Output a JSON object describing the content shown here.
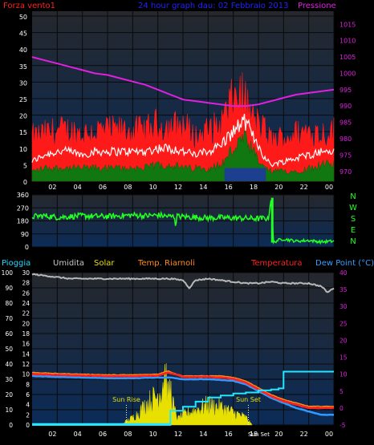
{
  "colors": {
    "plot_bg_top": "#23272c",
    "plot_bg_bottom": "#0b2a55",
    "grid": "#0a0a0a",
    "wind_gust": "#ff1a1a",
    "wind_avg": "#ffffff",
    "wind_low": "#117711",
    "wind_blue": "#1d3f8f",
    "pressure": "#e020e0",
    "wind_dir": "#22ff22",
    "humidity": "#b8b8b8",
    "solar": "#e8e000",
    "temperature": "#ff2020",
    "temp_inside": "#ff8c1a",
    "dewpoint": "#3399ff",
    "rain": "#22e8ff",
    "title": "#2222ff",
    "tick_left": "#ffffff",
    "tick_right": "#dd22dd",
    "cyan_label": "#33b8ff"
  },
  "chart_data": [
    {
      "type": "line",
      "title": "24 hour graph dau: 02 Febbraio 2013",
      "left_label": "Forza vento1",
      "right_label": "Pressione",
      "x_ticks": [
        "02",
        "04",
        "06",
        "08",
        "10",
        "12",
        "14",
        "16",
        "18",
        "20",
        "22",
        "00"
      ],
      "y_left_ticks": [
        "0",
        "5",
        "10",
        "15",
        "20",
        "25",
        "30",
        "35",
        "40",
        "45",
        "50"
      ],
      "y_left_range": [
        0,
        50
      ],
      "y_right_ticks": [
        "970",
        "975",
        "980",
        "985",
        "990",
        "995",
        "1000",
        "1005",
        "1010",
        "1015"
      ],
      "y_right_range": [
        967,
        1019
      ],
      "x_range_hours": [
        0,
        24
      ],
      "series": [
        {
          "name": "Forza vento1",
          "kind": "gust",
          "x": [
            0,
            1,
            2,
            3,
            4,
            5,
            6,
            7,
            8,
            9,
            10,
            11,
            12,
            13,
            14,
            15,
            15.5,
            16,
            16.5,
            17,
            17.5,
            18,
            18.5,
            19,
            20,
            21,
            22,
            23,
            24
          ],
          "values": [
            14,
            15,
            16,
            16,
            15,
            16,
            16,
            16,
            16,
            16,
            18,
            17,
            18,
            14,
            16,
            18,
            22,
            26,
            28,
            25,
            20,
            18,
            16,
            13,
            14,
            15,
            16,
            15,
            16
          ]
        },
        {
          "kind": "average",
          "x": [
            0,
            1,
            2,
            3,
            4,
            5,
            6,
            7,
            8,
            9,
            10,
            11,
            12,
            13,
            14,
            15,
            15.5,
            16,
            16.5,
            17,
            17.5,
            18,
            18.5,
            19,
            20,
            21,
            22,
            23,
            24
          ],
          "values": [
            6,
            8,
            9,
            9,
            8,
            9,
            9,
            9,
            9,
            9,
            10,
            10,
            9,
            8,
            9,
            11,
            13,
            15,
            17,
            18,
            14,
            11,
            7,
            5,
            6,
            7,
            8,
            9,
            9
          ]
        },
        {
          "kind": "low",
          "x": [
            0,
            1,
            2,
            3,
            4,
            5,
            6,
            7,
            8,
            9,
            10,
            11,
            12,
            13,
            14,
            15,
            15.5,
            16,
            16.5,
            17,
            17.5,
            18,
            18.5,
            19,
            20,
            21,
            22,
            23,
            24
          ],
          "values": [
            3,
            4,
            4,
            4,
            4,
            4,
            4,
            4,
            4,
            4,
            5,
            5,
            4,
            4,
            4,
            5,
            7,
            10,
            12,
            12,
            9,
            6,
            4,
            3,
            3,
            3,
            4,
            5,
            5
          ]
        },
        {
          "name": "Pressione",
          "x": [
            0,
            1,
            2,
            3,
            4,
            5,
            6,
            7,
            8,
            9,
            10,
            11,
            12,
            13,
            14,
            15,
            16,
            17,
            18,
            19,
            20,
            21,
            22,
            23,
            24
          ],
          "values": [
            1005,
            1004,
            1003,
            1002,
            1001,
            1000,
            999.5,
            998.5,
            997.5,
            996.5,
            995,
            993.5,
            992,
            991.5,
            991,
            990.5,
            990,
            990,
            990.5,
            991.5,
            992.5,
            993.5,
            994,
            994.5,
            995
          ]
        }
      ]
    },
    {
      "type": "line",
      "right_letters": [
        "N",
        "W",
        "S",
        "E",
        "N"
      ],
      "y_ticks": [
        "360",
        "270",
        "180",
        "90",
        "0"
      ],
      "y_range": [
        0,
        360
      ],
      "x_range_hours": [
        0,
        24
      ],
      "series": [
        {
          "kind": "wind_direction",
          "x": [
            0,
            1,
            2,
            3,
            4,
            5,
            6,
            7,
            8,
            9,
            10,
            11,
            12,
            13,
            14,
            15,
            16,
            17,
            18,
            18.8,
            19,
            19.2,
            19.5,
            20,
            21,
            22,
            23,
            24
          ],
          "values": [
            210,
            215,
            205,
            210,
            215,
            212,
            210,
            215,
            220,
            215,
            220,
            210,
            210,
            205,
            200,
            202,
            200,
            198,
            196,
            198,
            330,
            30,
            45,
            55,
            40,
            45,
            35,
            40
          ]
        }
      ]
    },
    {
      "type": "line",
      "labels": [
        "Pioggia",
        "Umidita",
        "Solar",
        "Temp. Riarnoli",
        "Temperatura",
        "Dew Point (°C)"
      ],
      "x_ticks": [
        "02",
        "04",
        "06",
        "08",
        "10",
        "12",
        "14",
        "16",
        "18",
        "20",
        "22",
        "00"
      ],
      "y_left_ticks": [
        "0",
        "10",
        "20",
        "30",
        "40",
        "50",
        "60",
        "70",
        "80",
        "90",
        "100"
      ],
      "y_left_range": [
        0,
        100
      ],
      "y_inner_ticks": [
        "0",
        "2",
        "4",
        "6",
        "8",
        "10",
        "12",
        "14",
        "16",
        "18",
        "20",
        "22",
        "24",
        "26",
        "28",
        "30"
      ],
      "y_inner_range": [
        0,
        30
      ],
      "y_right_ticks": [
        "-5",
        "0",
        "5",
        "10",
        "15",
        "20",
        "25",
        "30",
        "35",
        "40"
      ],
      "y_right_range": [
        -5,
        40
      ],
      "annotations": [
        "Sun Rise",
        "Sun Set",
        "Sun Set"
      ],
      "sun_rise_hour": 7.5,
      "sun_set_hour": 17.2,
      "series": [
        {
          "name": "Umidita",
          "x": [
            0,
            1,
            2,
            3,
            4,
            5,
            6,
            7,
            8,
            9,
            10,
            11,
            12,
            12.5,
            13,
            14,
            15,
            16,
            17,
            18,
            19,
            20,
            21,
            22,
            23,
            23.5,
            24
          ],
          "values": [
            99,
            98,
            97,
            96,
            96,
            96,
            96,
            96,
            96,
            96,
            96,
            96,
            95,
            90,
            95,
            96,
            95,
            94,
            93,
            93,
            94,
            93,
            93,
            93,
            91,
            87,
            90
          ]
        },
        {
          "name": "Solar",
          "x": [
            7,
            7.5,
            8,
            8.5,
            9,
            9.5,
            10,
            10.3,
            10.6,
            10.8,
            11,
            11.3,
            11.6,
            12,
            13,
            14,
            15,
            16,
            17,
            17.5
          ],
          "values": [
            0,
            3,
            6,
            10,
            16,
            20,
            24,
            30,
            45,
            22,
            30,
            12,
            5,
            8,
            12,
            16,
            14,
            10,
            6,
            0
          ]
        },
        {
          "name": "Temp. Riarnoli",
          "x": [
            0,
            2,
            4,
            6,
            8,
            10,
            10.8,
            11.5,
            12,
            13,
            14,
            15,
            16,
            17,
            18,
            19,
            20,
            21,
            22,
            23,
            24
          ],
          "values": [
            10.5,
            10.2,
            10,
            9.8,
            9.8,
            10,
            11,
            10,
            9.5,
            9.5,
            9.5,
            9.5,
            9,
            8,
            6,
            4,
            2.5,
            1.5,
            0.5,
            0.5,
            0.5
          ]
        },
        {
          "name": "Temperatura",
          "x": [
            0,
            2,
            4,
            6,
            8,
            10,
            10.8,
            11.5,
            12,
            13,
            14,
            15,
            16,
            17,
            18,
            19,
            20,
            21,
            22,
            23,
            24
          ],
          "values": [
            10,
            9.8,
            9.6,
            9.4,
            9.4,
            9.6,
            10.5,
            9.8,
            9.2,
            9.2,
            9.2,
            9,
            8.6,
            7.5,
            5.5,
            3.5,
            2,
            1,
            0,
            0,
            0
          ]
        },
        {
          "name": "Dew Point (°C)",
          "x": [
            0,
            2,
            4,
            6,
            8,
            10,
            11,
            12,
            13,
            14,
            15,
            16,
            17,
            18,
            19,
            20,
            21,
            22,
            23,
            24
          ],
          "values": [
            9.5,
            9.2,
            9,
            8.8,
            8.8,
            9,
            9,
            8.5,
            8.5,
            8.5,
            8.3,
            8,
            7,
            5,
            3,
            1.5,
            0,
            -1,
            -2,
            -2
          ]
        },
        {
          "name": "Pioggia",
          "x": [
            0,
            10,
            10.6,
            11,
            12,
            13,
            14,
            15,
            16,
            17,
            18,
            19,
            19.6,
            20,
            21,
            22,
            23,
            24
          ],
          "values": [
            0,
            0,
            0,
            2.8,
            3.6,
            4.6,
            5.4,
            5.8,
            6.2,
            6.4,
            6.8,
            7.0,
            7.2,
            10.5,
            10.5,
            10.5,
            10.5,
            10.5
          ]
        }
      ]
    }
  ]
}
